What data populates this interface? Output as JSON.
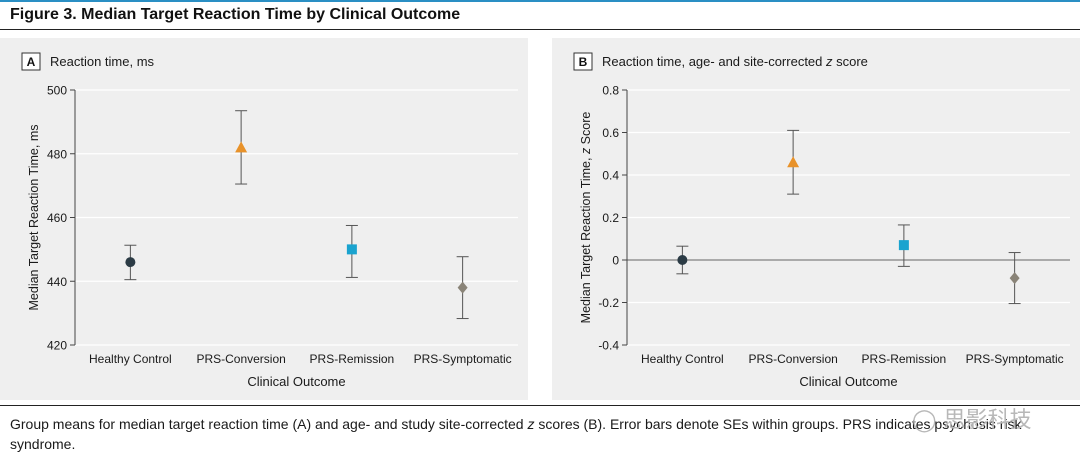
{
  "figure": {
    "title": "Figure 3. Median Target Reaction Time by Clinical Outcome",
    "caption_before_z": "Group means for median target reaction time (A) and age- and study site-corrected ",
    "caption_z": "z",
    "caption_after_z": " scores (B). Error bars denote SEs within groups. PRS indicates psychosis risk syndrome.",
    "watermark": "思影科技"
  },
  "chart_data": [
    {
      "panel_letter": "A",
      "panel_title": "Reaction time, ms",
      "type": "scatter",
      "ylabel": "Median Target Reaction Time, ms",
      "xlabel": "Clinical Outcome",
      "ylim": [
        420,
        500
      ],
      "yticks": [
        420,
        440,
        460,
        480,
        500
      ],
      "ytick_labels": [
        "420",
        "440",
        "460",
        "480",
        "500"
      ],
      "grid": true,
      "zero_line": false,
      "categories": [
        "Healthy Control",
        "PRS-Conversion",
        "PRS-Remission",
        "PRS-Symptomatic"
      ],
      "points": [
        {
          "group": "Healthy Control",
          "mean": 446,
          "lower": 440.5,
          "upper": 451.3,
          "marker": "circle",
          "color": "#2b3b45"
        },
        {
          "group": "PRS-Conversion",
          "mean": 482,
          "lower": 470.5,
          "upper": 493.5,
          "marker": "triangle",
          "color": "#e8922a"
        },
        {
          "group": "PRS-Remission",
          "mean": 450,
          "lower": 441.2,
          "upper": 457.5,
          "marker": "square",
          "color": "#1aa3cf"
        },
        {
          "group": "PRS-Symptomatic",
          "mean": 438,
          "lower": 428.3,
          "upper": 447.7,
          "marker": "diamond",
          "color": "#8a8478"
        }
      ]
    },
    {
      "panel_letter": "B",
      "panel_title_before": "Reaction time, age- and site-corrected ",
      "panel_title_z": "z",
      "panel_title_after": " score",
      "type": "scatter",
      "ylabel_before": "Median Target Reaction Time, ",
      "ylabel_z": "z",
      "ylabel_after": " Score",
      "xlabel": "Clinical Outcome",
      "ylim": [
        -0.4,
        0.8
      ],
      "yticks": [
        -0.4,
        -0.2,
        0,
        0.2,
        0.4,
        0.6,
        0.8
      ],
      "ytick_labels": [
        "-0.4",
        "-0.2",
        "0",
        "0.2",
        "0.4",
        "0.6",
        "0.8"
      ],
      "grid": true,
      "zero_line": true,
      "categories": [
        "Healthy Control",
        "PRS-Conversion",
        "PRS-Remission",
        "PRS-Symptomatic"
      ],
      "points": [
        {
          "group": "Healthy Control",
          "mean": 0.0,
          "lower": -0.065,
          "upper": 0.065,
          "marker": "circle",
          "color": "#2b3b45"
        },
        {
          "group": "PRS-Conversion",
          "mean": 0.46,
          "lower": 0.31,
          "upper": 0.61,
          "marker": "triangle",
          "color": "#e8922a"
        },
        {
          "group": "PRS-Remission",
          "mean": 0.07,
          "lower": -0.03,
          "upper": 0.165,
          "marker": "square",
          "color": "#1aa3cf"
        },
        {
          "group": "PRS-Symptomatic",
          "mean": -0.085,
          "lower": -0.205,
          "upper": 0.035,
          "marker": "diamond",
          "color": "#8a8478"
        }
      ]
    }
  ]
}
